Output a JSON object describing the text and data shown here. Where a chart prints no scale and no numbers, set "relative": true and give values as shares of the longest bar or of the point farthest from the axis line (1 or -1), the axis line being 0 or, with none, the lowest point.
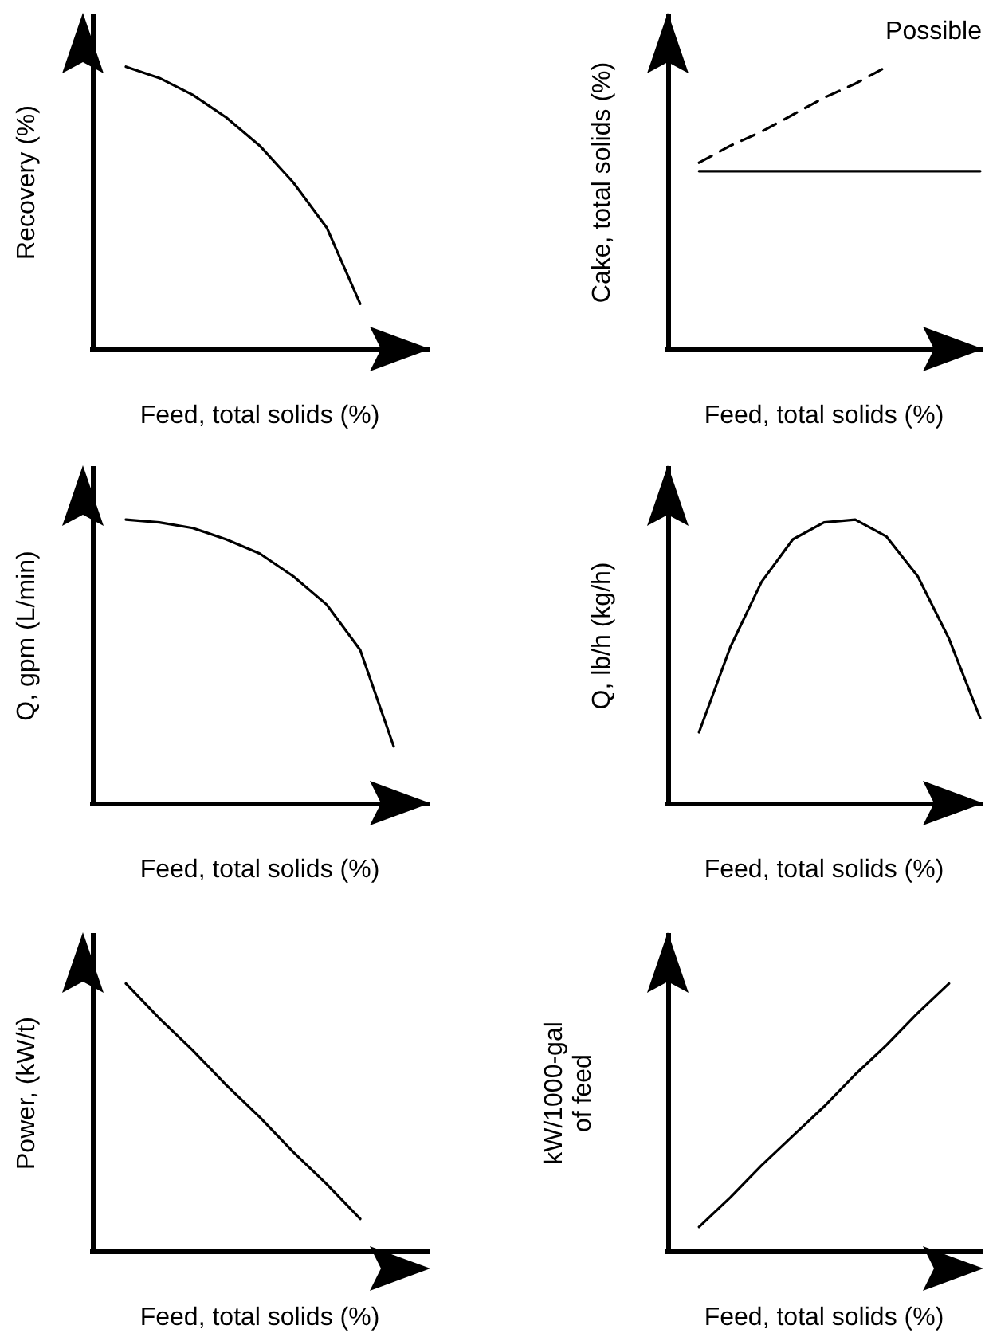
{
  "chart_data": [
    {
      "type": "line",
      "relative": true,
      "xlabel": "Feed, total solids (%)",
      "ylabel": "Recovery (%)",
      "categories": [
        null,
        null,
        null,
        null,
        null,
        null,
        null,
        null,
        null,
        null,
        null
      ],
      "grid": false,
      "marker": "none",
      "line_style": "solid",
      "series": [
        {
          "color": "#000000",
          "values": [
            null,
            1.0,
            0.96,
            0.9,
            0.82,
            0.72,
            0.59,
            0.43,
            0.16,
            null,
            null
          ]
        }
      ]
    },
    {
      "type": "line",
      "relative": true,
      "xlabel": "Feed, total solids (%)",
      "ylabel": "Cake, total solids (%)",
      "categories": [
        null,
        null,
        null,
        null,
        null,
        null,
        null,
        null,
        null,
        null,
        null
      ],
      "grid": false,
      "marker": "none",
      "annotations": [
        "Possible"
      ],
      "series": [
        {
          "color": "#000000",
          "line_style": "solid",
          "values": [
            null,
            0.63,
            0.63,
            0.63,
            0.63,
            0.63,
            0.63,
            0.63,
            0.63,
            0.63,
            0.63
          ]
        },
        {
          "color": "#000000",
          "line_style": "dashed",
          "values": [
            null,
            0.66,
            0.72,
            0.77,
            0.83,
            0.89,
            0.94,
            1.0,
            null,
            null,
            null
          ]
        }
      ]
    },
    {
      "type": "line",
      "relative": true,
      "xlabel": "Feed, total solids (%)",
      "ylabel": "Q, gpm (L/min)",
      "categories": [
        null,
        null,
        null,
        null,
        null,
        null,
        null,
        null,
        null,
        null,
        null
      ],
      "grid": false,
      "marker": "none",
      "line_style": "solid",
      "series": [
        {
          "color": "#000000",
          "values": [
            null,
            1.0,
            0.99,
            0.97,
            0.93,
            0.88,
            0.8,
            0.7,
            0.54,
            0.2,
            null
          ]
        }
      ]
    },
    {
      "type": "line",
      "relative": true,
      "xlabel": "Feed, total solids (%)",
      "ylabel": "Q, lb/h (kg/h)",
      "categories": [
        null,
        null,
        null,
        null,
        null,
        null,
        null,
        null,
        null,
        null,
        null
      ],
      "grid": false,
      "marker": "none",
      "line_style": "solid",
      "series": [
        {
          "color": "#000000",
          "values": [
            null,
            0.25,
            0.55,
            0.78,
            0.93,
            0.99,
            1.0,
            0.94,
            0.8,
            0.58,
            0.3
          ]
        }
      ]
    },
    {
      "type": "line",
      "relative": true,
      "xlabel": "Feed, total solids (%)",
      "ylabel": "Power, (kW/t)",
      "categories": [
        null,
        null,
        null,
        null,
        null,
        null,
        null,
        null,
        null,
        null,
        null
      ],
      "grid": false,
      "marker": "none",
      "line_style": "solid",
      "series": [
        {
          "color": "#000000",
          "values": [
            null,
            1.0,
            0.87,
            0.75,
            0.62,
            0.5,
            0.37,
            0.25,
            0.12,
            null,
            null
          ]
        }
      ]
    },
    {
      "type": "line",
      "relative": true,
      "xlabel": "Feed, total solids (%)",
      "ylabel": "kW/1000-gal\nof feed",
      "categories": [
        null,
        null,
        null,
        null,
        null,
        null,
        null,
        null,
        null,
        null,
        null
      ],
      "grid": false,
      "marker": "none",
      "line_style": "solid",
      "series": [
        {
          "color": "#000000",
          "values": [
            null,
            0.09,
            0.2,
            0.32,
            0.43,
            0.54,
            0.66,
            0.77,
            0.89,
            1.0,
            null
          ]
        }
      ]
    }
  ]
}
